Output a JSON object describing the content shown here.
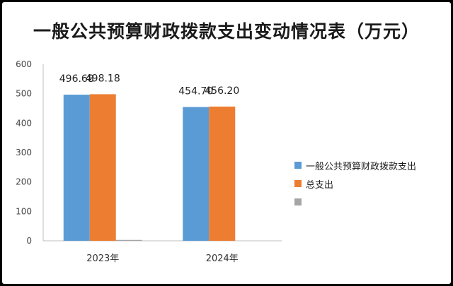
{
  "chart_data": {
    "type": "bar",
    "title": "一般公共预算财政拨款支出变动情况表（万元）",
    "categories": [
      "2023年",
      "2024年"
    ],
    "series": [
      {
        "name": "一般公共预算财政拨款支出",
        "color": "#5b9bd5",
        "values": [
          496.68,
          454.7
        ],
        "labels": [
          "496.68",
          "454.70"
        ]
      },
      {
        "name": "总支出",
        "color": "#ed7d31",
        "values": [
          498.18,
          456.2
        ],
        "labels": [
          "498.18",
          "456.20"
        ]
      },
      {
        "name": "",
        "color": "#a5a5a5",
        "values": [
          3,
          0
        ],
        "labels": [
          "",
          ""
        ]
      }
    ],
    "ylim": [
      0,
      600
    ],
    "yticks": [
      "0",
      "100",
      "200",
      "300",
      "400",
      "500",
      "600"
    ],
    "ytick_values": [
      0,
      100,
      200,
      300,
      400,
      500,
      600
    ],
    "xlabel": "",
    "ylabel": "",
    "legend_position": "right",
    "grid": false
  }
}
